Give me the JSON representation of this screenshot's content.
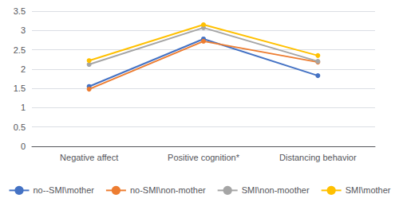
{
  "chart_data": {
    "type": "line",
    "categories": [
      "Negative affect",
      "Positive cognition*",
      "Distancing behavior"
    ],
    "series": [
      {
        "name": "no--SMI\\mother",
        "color": "#4472C4",
        "marker": "circle",
        "values": [
          1.55,
          2.78,
          1.83
        ]
      },
      {
        "name": "no-SMI\\non-mother",
        "color": "#ED7D31",
        "marker": "circle",
        "values": [
          1.48,
          2.72,
          2.18
        ]
      },
      {
        "name": "SMI\\non-moother",
        "color": "#A5A5A5",
        "marker": "circle",
        "values": [
          2.12,
          3.07,
          2.2
        ]
      },
      {
        "name": "SMI\\mother",
        "color": "#FFC000",
        "marker": "circle",
        "values": [
          2.22,
          3.15,
          2.35
        ]
      }
    ],
    "ylim": [
      0,
      3.5
    ],
    "yticks": [
      0,
      0.5,
      1,
      1.5,
      2,
      2.5,
      3,
      3.5
    ],
    "grid": true,
    "legend": "bottom"
  }
}
